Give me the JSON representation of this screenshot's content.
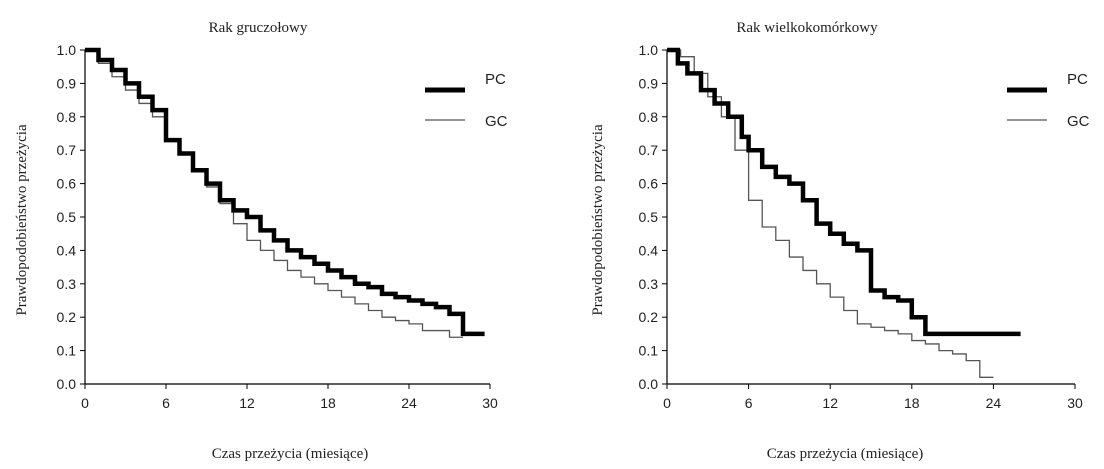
{
  "chart_data": [
    {
      "type": "line",
      "title": "Rak gruczołowy",
      "xlabel": "Czas przeżycia (miesiące)",
      "ylabel": "Prawdopodobieństwo przeżycia",
      "xlim": [
        0,
        30
      ],
      "ylim": [
        0,
        1.0
      ],
      "xticks": [
        0,
        6,
        12,
        18,
        24,
        30
      ],
      "yticks": [
        0.0,
        0.1,
        0.2,
        0.3,
        0.4,
        0.5,
        0.6,
        0.7,
        0.8,
        0.9,
        1.0
      ],
      "xtick_labels": [
        "0",
        "6",
        "12",
        "18",
        "24",
        "30"
      ],
      "ytick_labels": [
        "0.0",
        "0.1",
        "0.2",
        "0.3",
        "0.4",
        "0.5",
        "0.6",
        "0.7",
        "0.8",
        "0.9",
        "1.0"
      ],
      "grid": false,
      "legend_position": "top-right",
      "series": [
        {
          "name": "PC",
          "style": "thick",
          "color": "#000000",
          "x": [
            0,
            1,
            2,
            3,
            4,
            5,
            6,
            7,
            8,
            9,
            10,
            11,
            12,
            13,
            14,
            15,
            16,
            17,
            18,
            19,
            20,
            21,
            22,
            23,
            24,
            25,
            26,
            27,
            28,
            29,
            29.6
          ],
          "y": [
            1.0,
            0.97,
            0.94,
            0.9,
            0.86,
            0.82,
            0.73,
            0.69,
            0.64,
            0.6,
            0.55,
            0.52,
            0.5,
            0.46,
            0.43,
            0.4,
            0.38,
            0.36,
            0.34,
            0.32,
            0.3,
            0.29,
            0.27,
            0.26,
            0.25,
            0.24,
            0.23,
            0.21,
            0.15,
            0.15,
            0.15
          ]
        },
        {
          "name": "GC",
          "style": "thin",
          "color": "#555555",
          "x": [
            0,
            1,
            2,
            3,
            4,
            5,
            6,
            7,
            8,
            9,
            10,
            11,
            12,
            13,
            14,
            15,
            16,
            17,
            18,
            19,
            20,
            21,
            22,
            23,
            24,
            25,
            26,
            27,
            28
          ],
          "y": [
            1.0,
            0.96,
            0.92,
            0.88,
            0.84,
            0.8,
            0.73,
            0.69,
            0.64,
            0.59,
            0.54,
            0.48,
            0.43,
            0.4,
            0.37,
            0.34,
            0.32,
            0.3,
            0.28,
            0.26,
            0.24,
            0.22,
            0.2,
            0.19,
            0.18,
            0.16,
            0.16,
            0.14,
            0.14
          ]
        }
      ]
    },
    {
      "type": "line",
      "title": "Rak wielkokomórkowy",
      "xlabel": "Czas przeżycia (miesiące)",
      "ylabel": "Prawdopodobieństwo przeżycia",
      "xlim": [
        0,
        30
      ],
      "ylim": [
        0,
        1.0
      ],
      "xticks": [
        0,
        6,
        12,
        18,
        24,
        30
      ],
      "yticks": [
        0.0,
        0.1,
        0.2,
        0.3,
        0.4,
        0.5,
        0.6,
        0.7,
        0.8,
        0.9,
        1.0
      ],
      "xtick_labels": [
        "0",
        "6",
        "12",
        "18",
        "24",
        "30"
      ],
      "ytick_labels": [
        "0.0",
        "0.1",
        "0.2",
        "0.3",
        "0.4",
        "0.5",
        "0.6",
        "0.7",
        "0.8",
        "0.9",
        "1.0"
      ],
      "grid": false,
      "legend_position": "top-right",
      "series": [
        {
          "name": "PC",
          "style": "thick",
          "color": "#000000",
          "x": [
            0,
            0.8,
            1.5,
            2.5,
            3.5,
            4.5,
            5.5,
            6,
            7,
            8,
            9,
            10,
            11,
            12,
            13,
            14,
            15,
            16,
            17,
            18,
            19,
            20,
            22,
            24,
            26
          ],
          "y": [
            1.0,
            0.96,
            0.93,
            0.88,
            0.84,
            0.8,
            0.74,
            0.7,
            0.65,
            0.62,
            0.6,
            0.55,
            0.48,
            0.45,
            0.42,
            0.4,
            0.28,
            0.26,
            0.25,
            0.2,
            0.15,
            0.15,
            0.15,
            0.15,
            0.15
          ]
        },
        {
          "name": "GC",
          "style": "thin",
          "color": "#555555",
          "x": [
            0,
            1,
            2,
            3,
            4,
            5,
            6,
            7,
            8,
            9,
            10,
            11,
            12,
            13,
            14,
            15,
            16,
            17,
            18,
            19,
            20,
            21,
            22,
            23,
            24
          ],
          "y": [
            1.0,
            0.98,
            0.93,
            0.86,
            0.8,
            0.7,
            0.55,
            0.47,
            0.43,
            0.38,
            0.34,
            0.3,
            0.26,
            0.22,
            0.18,
            0.17,
            0.16,
            0.15,
            0.13,
            0.12,
            0.1,
            0.09,
            0.07,
            0.02,
            0.02
          ]
        }
      ]
    }
  ]
}
